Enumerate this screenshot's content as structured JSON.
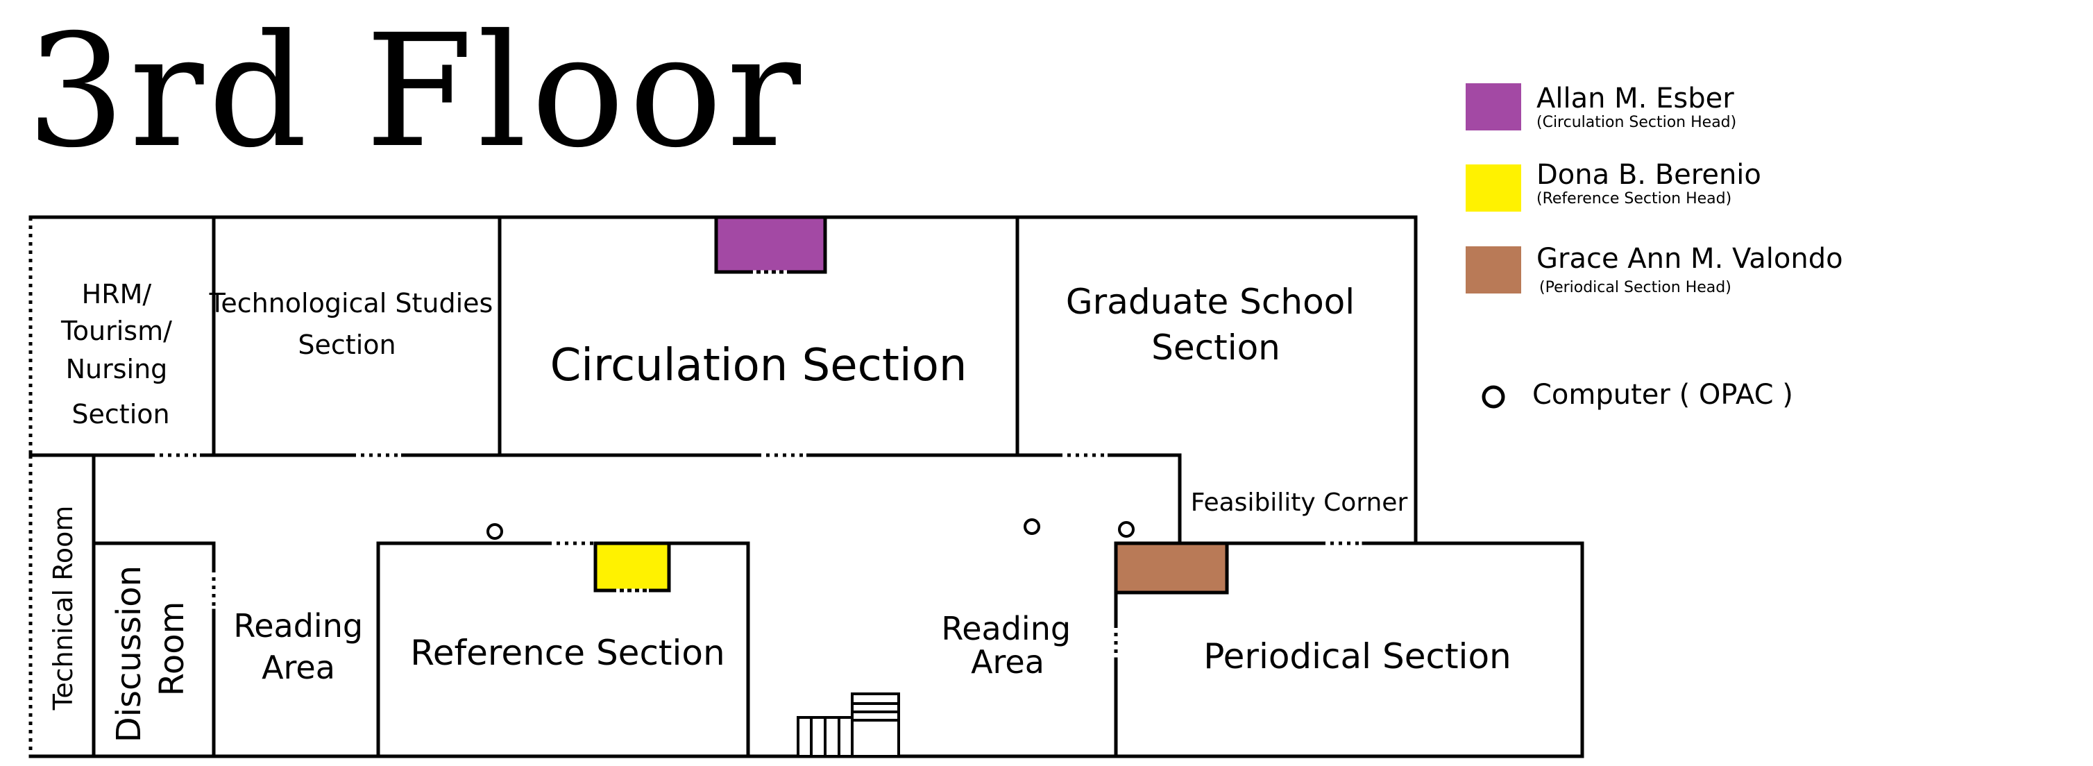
{
  "title": "3rd Floor",
  "colors": {
    "circulation": "#a349a4",
    "reference": "#fff200",
    "periodical": "#b97a57",
    "wall": "#000000"
  },
  "rooms": {
    "hrm": [
      "HRM/",
      "Tourism/",
      "Nursing",
      "Section"
    ],
    "tech_studies": [
      "Technological Studies",
      "Section"
    ],
    "circulation": "Circulation Section",
    "graduate": [
      "Graduate School",
      "Section"
    ],
    "technical_room": "Technical Room",
    "discussion": [
      "Discussion",
      "Room"
    ],
    "reading_left": [
      "Reading",
      "Area"
    ],
    "reference": "Reference Section",
    "reading_right": [
      "Reading",
      "Area"
    ],
    "feasibility": "Feasibility Corner",
    "periodical": "Periodical Section"
  },
  "legend": {
    "heads": [
      {
        "name": "Allan M. Esber",
        "role": "(Circulation Section Head)",
        "color": "#a349a4"
      },
      {
        "name": "Dona B. Berenio",
        "role": "(Reference Section Head)",
        "color": "#fff200"
      },
      {
        "name": "Grace Ann M. Valondo",
        "role": "(Periodical Section Head)",
        "color": "#b97a57"
      }
    ],
    "computer": "Computer ( OPAC )"
  }
}
